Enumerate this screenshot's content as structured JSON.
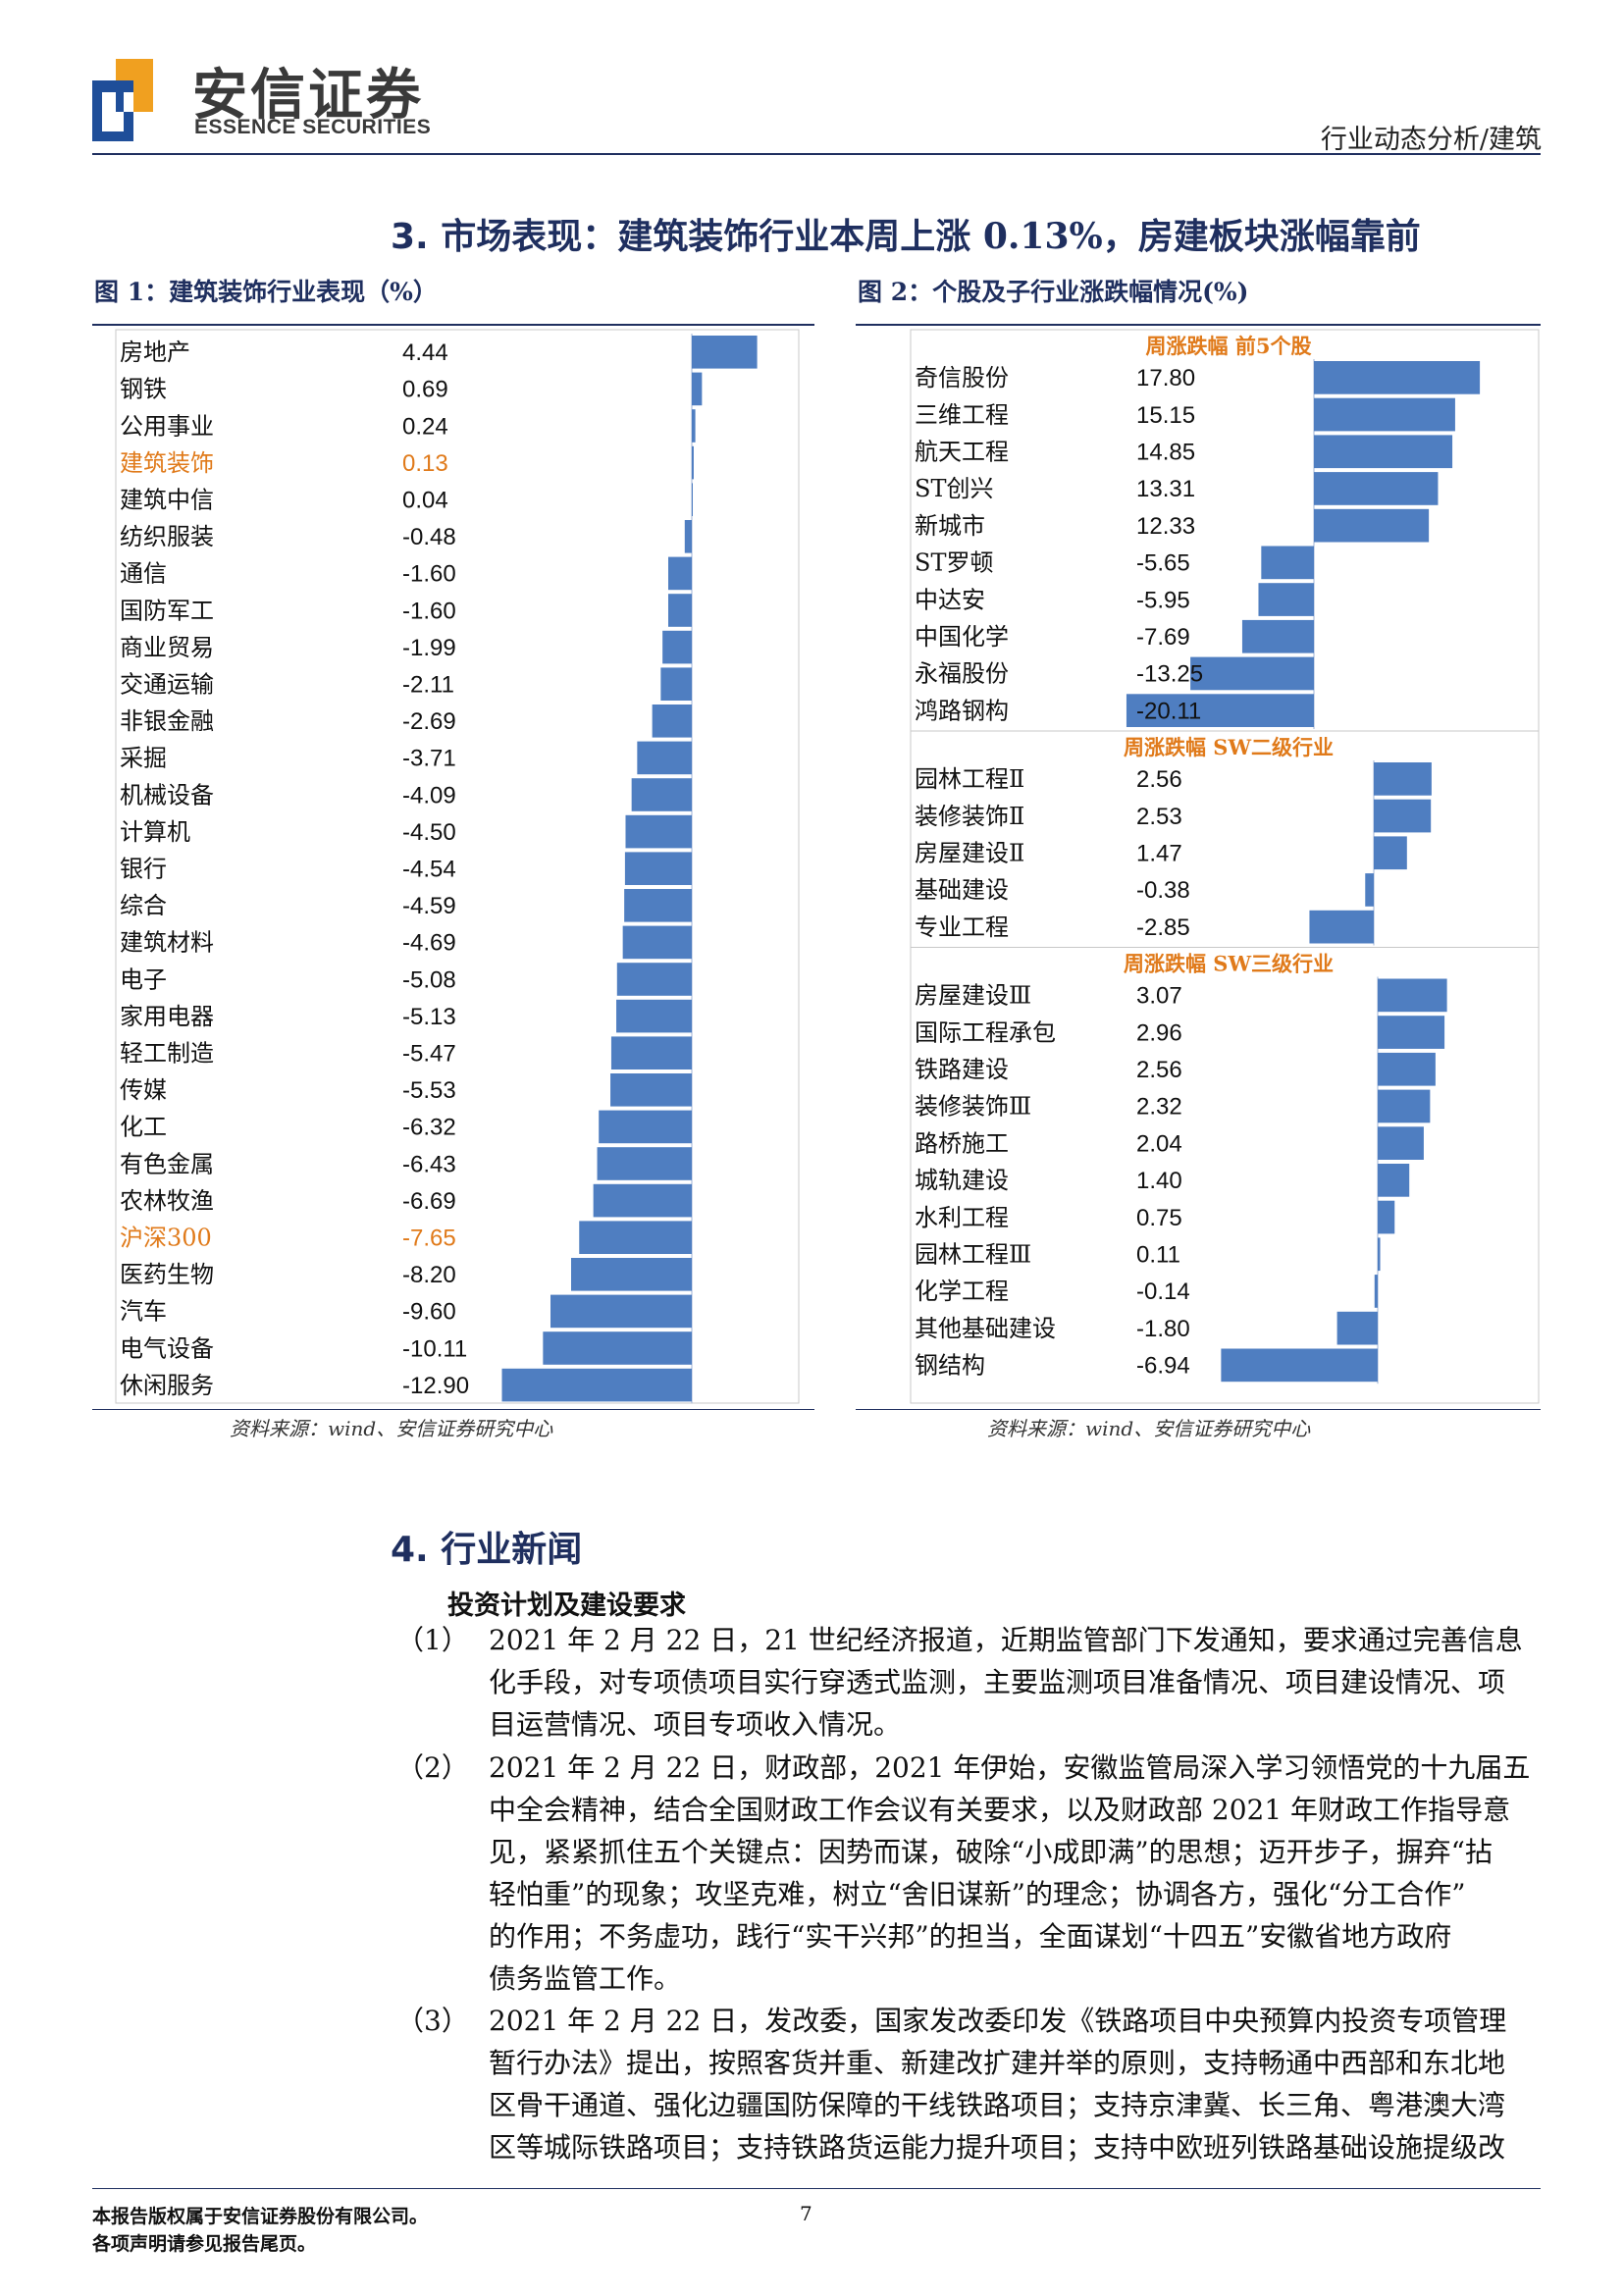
{
  "header": {
    "logo_cn": "安信证券",
    "logo_en": "ESSENCE SECURITIES",
    "section": "行业动态分析/建筑",
    "logo_colors": {
      "blue": "#1f4e99",
      "orange": "#f0a020"
    }
  },
  "section3": {
    "number": "3.",
    "title": "市场表现：建筑装饰行业本周上涨 0.13%，房建板块涨幅靠前"
  },
  "figure1": {
    "caption": "图 1：建筑装饰行业表现（%）",
    "source": "资料来源：wind、安信证券研究中心"
  },
  "figure2": {
    "caption": "图 2：个股及子行业涨跌幅情况(%)",
    "source": "资料来源：wind、安信证券研究中心",
    "panel_titles": [
      "周涨跌幅 前5个股",
      "周涨跌幅 SW二级行业",
      "周涨跌幅 SW三级行业"
    ]
  },
  "chart_data": [
    {
      "type": "bar",
      "orientation": "horizontal",
      "bar_color": "#4f7ec1",
      "highlight_color": "#e07a1a",
      "highlighted": [
        "建筑装饰",
        "沪深300"
      ],
      "categories": [
        "房地产",
        "钢铁",
        "公用事业",
        "建筑装饰",
        "建筑中信",
        "纺织服装",
        "通信",
        "国防军工",
        "商业贸易",
        "交通运输",
        "非银金融",
        "采掘",
        "机械设备",
        "计算机",
        "银行",
        "综合",
        "建筑材料",
        "电子",
        "家用电器",
        "轻工制造",
        "传媒",
        "化工",
        "有色金属",
        "农林牧渔",
        "沪深300",
        "医药生物",
        "汽车",
        "电气设备",
        "休闲服务"
      ],
      "values": [
        4.44,
        0.69,
        0.24,
        0.13,
        0.04,
        -0.48,
        -1.6,
        -1.6,
        -1.99,
        -2.11,
        -2.69,
        -3.71,
        -4.09,
        -4.5,
        -4.54,
        -4.59,
        -4.69,
        -5.08,
        -5.13,
        -5.47,
        -5.53,
        -6.32,
        -6.43,
        -6.69,
        -7.65,
        -8.2,
        -9.6,
        -10.11,
        -12.9
      ],
      "value_labels": [
        "4.44",
        "0.69",
        "0.24",
        "0.13",
        "0.04",
        "-0.48",
        "-1.60",
        "-1.60",
        "-1.99",
        "-2.11",
        "-2.69",
        "-3.71",
        "-4.09",
        "-4.50",
        "-4.54",
        "-4.59",
        "-4.69",
        "-5.08",
        "-5.13",
        "-5.47",
        "-5.53",
        "-6.32",
        "-6.43",
        "-6.69",
        "-7.65",
        "-8.20",
        "-9.60",
        "-10.11",
        "-12.90"
      ]
    },
    {
      "type": "bar",
      "orientation": "horizontal",
      "bar_color": "#4f7ec1",
      "panels": [
        {
          "title": "周涨跌幅 前5个股",
          "categories": [
            "奇信股份",
            "三维工程",
            "航天工程",
            "ST创兴",
            "新城市",
            "ST罗顿",
            "中达安",
            "中国化学",
            "永福股份",
            "鸿路钢构"
          ],
          "values": [
            17.8,
            15.15,
            14.85,
            13.31,
            12.33,
            -5.65,
            -5.95,
            -7.69,
            -13.25,
            -20.11
          ],
          "value_labels": [
            "17.80",
            "15.15",
            "14.85",
            "13.31",
            "12.33",
            "-5.65",
            "-5.95",
            "-7.69",
            "-13.25",
            "-20.11"
          ]
        },
        {
          "title": "周涨跌幅 SW二级行业",
          "categories": [
            "园林工程Ⅱ",
            "装修装饰Ⅱ",
            "房屋建设Ⅱ",
            "基础建设",
            "专业工程"
          ],
          "values": [
            2.56,
            2.53,
            1.47,
            -0.38,
            -2.85
          ],
          "value_labels": [
            "2.56",
            "2.53",
            "1.47",
            "-0.38",
            "-2.85"
          ]
        },
        {
          "title": "周涨跌幅 SW三级行业",
          "categories": [
            "房屋建设Ⅲ",
            "国际工程承包",
            "铁路建设",
            "装修装饰Ⅲ",
            "路桥施工",
            "城轨建设",
            "水利工程",
            "园林工程Ⅲ",
            "化学工程",
            "其他基础建设",
            "钢结构"
          ],
          "values": [
            3.07,
            2.96,
            2.56,
            2.32,
            2.04,
            1.4,
            0.75,
            0.11,
            -0.14,
            -1.8,
            -6.94
          ],
          "value_labels": [
            "3.07",
            "2.96",
            "2.56",
            "2.32",
            "2.04",
            "1.40",
            "0.75",
            "0.11",
            "-0.14",
            "-1.80",
            "-6.94"
          ]
        }
      ]
    }
  ],
  "section4": {
    "number": "4.",
    "title": "行业新闻",
    "subheading": "投资计划及建设要求",
    "items": [
      {
        "no": "（1）",
        "lines": [
          "2021 年 2 月 22 日，21 世纪经济报道，近期监管部门下发通知，要求通过完善信息",
          "化手段，对专项债项目实行穿透式监测，主要监测项目准备情况、项目建设情况、项",
          "目运营情况、项目专项收入情况。"
        ]
      },
      {
        "no": "（2）",
        "lines": [
          "2021 年 2 月 22 日，财政部，2021 年伊始，安徽监管局深入学习领悟党的十九届五",
          "中全会精神，结合全国财政工作会议有关要求，以及财政部 2021 年财政工作指导意",
          "见，紧紧抓住五个关键点：因势而谋，破除“小成即满”的思想；迈开步子，摒弃“拈",
          "轻怕重”的现象；攻坚克难，树立“舍旧谋新”的理念；协调各方，强化“分工合作”",
          "的作用；不务虚功，践行“实干兴邦”的担当，全面谋划“十四五”安徽省地方政府",
          "债务监管工作。"
        ]
      },
      {
        "no": "（3）",
        "lines": [
          "2021 年 2 月 22 日，发改委，国家发改委印发《铁路项目中央预算内投资专项管理",
          "暂行办法》提出，按照客货并重、新建改扩建并举的原则，支持畅通中西部和东北地",
          "区骨干通道、强化边疆国防保障的干线铁路项目；支持京津冀、长三角、粤港澳大湾",
          "区等城际铁路项目；支持铁路货运能力提升项目；支持中欧班列铁路基础设施提级改"
        ]
      }
    ]
  },
  "footer": {
    "copyright": "本报告版权属于安信证券股份有限公司。",
    "disclaimer": "各项声明请参见报告尾页。",
    "page": "7"
  }
}
